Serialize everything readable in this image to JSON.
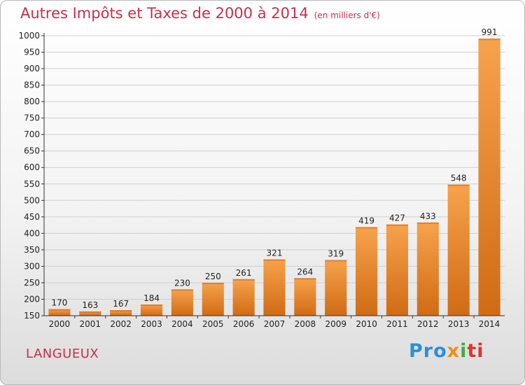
{
  "header": {
    "title": "Autres Impôts et Taxes de 2000 à 2014",
    "subtitle": "(en milliers d'€)"
  },
  "footer": {
    "place": "LANGUEUX",
    "logo_parts": [
      "Pro",
      "x",
      "i",
      "ti"
    ]
  },
  "colors": {
    "title": "#c4304f",
    "bar_light": "#f7a24c",
    "bar_dark": "#d06b14",
    "grid": "#cfcfcf"
  },
  "chart_data": {
    "type": "bar",
    "title": "Autres Impôts et Taxes de 2000 à 2014",
    "subtitle": "(en milliers d'€)",
    "categories": [
      "2000",
      "2001",
      "2002",
      "2003",
      "2004",
      "2005",
      "2006",
      "2007",
      "2008",
      "2009",
      "2010",
      "2011",
      "2012",
      "2013",
      "2014"
    ],
    "values": [
      170,
      163,
      167,
      184,
      230,
      250,
      261,
      321,
      264,
      319,
      419,
      427,
      433,
      548,
      991
    ],
    "ylim": [
      150,
      1000
    ],
    "yticks": [
      150,
      200,
      250,
      300,
      350,
      400,
      450,
      500,
      550,
      600,
      650,
      700,
      750,
      800,
      850,
      900,
      950,
      1000
    ],
    "grid": true,
    "data_labels": true
  }
}
